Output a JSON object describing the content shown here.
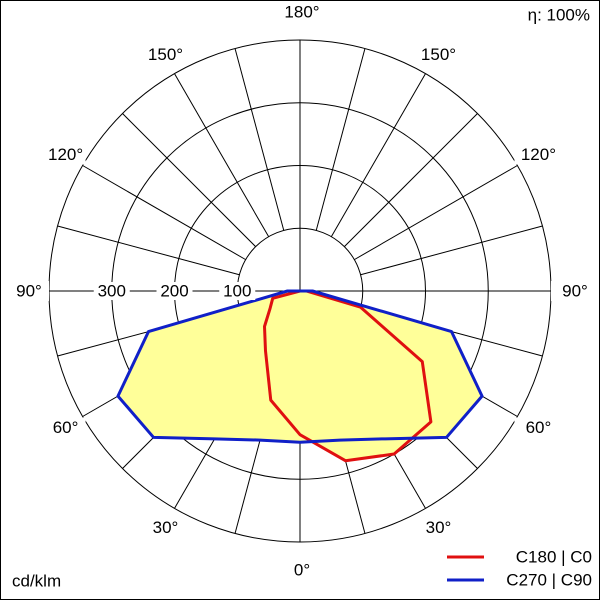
{
  "chart_data": {
    "type": "polar",
    "efficiency_label": "η: 100%",
    "unit_label": "cd/klm",
    "x": [
      -90,
      -75,
      -60,
      -45,
      -30,
      -15,
      0,
      15,
      30,
      45,
      60,
      75,
      90
    ],
    "series": [
      {
        "name": "C180 | C0",
        "color": "#e01010",
        "values": [
          0,
          45,
          55,
          80,
          110,
          180,
          229,
          280,
          300,
          295,
          225,
          100,
          10
        ]
      },
      {
        "name": "C270 | C90",
        "color": "#1020c8",
        "values": [
          20,
          250,
          335,
          330,
          272,
          246,
          241,
          246,
          272,
          330,
          335,
          250,
          20
        ]
      }
    ],
    "fill_color": "#ffff99",
    "rlim": [
      0,
      400
    ],
    "rticks": [
      100,
      200,
      300
    ],
    "spoke_step": 15,
    "angle_ticks": [
      {
        "value": 0,
        "label": "0°"
      },
      {
        "value": 30,
        "label": "30°"
      },
      {
        "value": 60,
        "label": "60°"
      },
      {
        "value": 90,
        "label": "90°"
      },
      {
        "value": 120,
        "label": "120°"
      },
      {
        "value": 150,
        "label": "150°"
      },
      {
        "value": 180,
        "label": "180°"
      },
      {
        "value": -30,
        "label": "30°"
      },
      {
        "value": -60,
        "label": "60°"
      },
      {
        "value": -90,
        "label": "90°"
      },
      {
        "value": -120,
        "label": "120°"
      },
      {
        "value": -150,
        "label": "150°"
      }
    ],
    "legend": "bottom-right"
  }
}
